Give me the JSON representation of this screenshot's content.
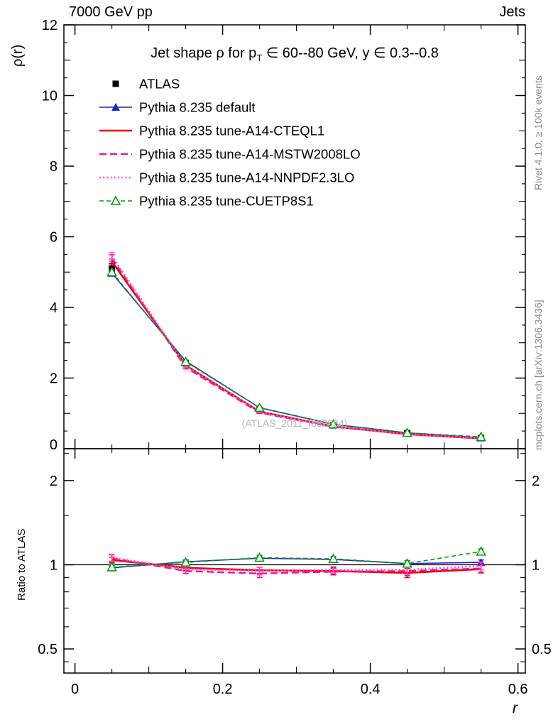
{
  "header": {
    "left": "7000 GeV pp",
    "right": "Jets"
  },
  "title": {
    "pre": "Jet shape ρ for p",
    "sub": "T",
    "post": " ∈ 60--80 GeV, y ∈ 0.3--0.8"
  },
  "watermark": "(ATLAS_2011_I882984)",
  "side": {
    "rivet": "Rivet 4.1.0, ≥ 100k events",
    "mcplots": "mcplots.cern.ch [arXiv:1306.3436]"
  },
  "chart_data": {
    "type": "line",
    "title": "Jet shape ρ for p_T ∈ 60--80 GeV, y ∈ 0.3--0.8",
    "xlabel": "r",
    "x": [
      0.05,
      0.15,
      0.25,
      0.35,
      0.45,
      0.55
    ],
    "xlim": [
      -0.015,
      0.61
    ],
    "xticks": [
      0,
      0.2,
      0.4,
      0.6
    ],
    "main_panel": {
      "ylabel": "ρ(r)",
      "ylim": [
        0,
        12
      ],
      "yticks": [
        0,
        2,
        4,
        6,
        8,
        10,
        12
      ]
    },
    "ratio_panel": {
      "ylabel": "Ratio to ATLAS",
      "yscale": "log",
      "ylim": [
        0.41,
        2.6
      ],
      "yticks": [
        0.5,
        1,
        2
      ],
      "reference": 1
    },
    "series": [
      {
        "name": "ATLAS",
        "color": "#000000",
        "marker": "square",
        "line": "none",
        "width": 1.5,
        "main": [
          5.1,
          2.42,
          1.1,
          0.66,
          0.44,
          0.3
        ],
        "main_err": [
          0.15,
          0.08,
          0.05,
          0.03,
          0.02,
          0.02
        ],
        "ratio": null,
        "ratio_err": null
      },
      {
        "name": "Pythia 8.235 default",
        "color": "#2222cc",
        "marker": "triangle",
        "line": "solid",
        "width": 1.6,
        "main": [
          4.97,
          2.48,
          1.16,
          0.69,
          0.45,
          0.31
        ],
        "main_err": [
          0.06,
          0.03,
          0.02,
          0.015,
          0.01,
          0.01
        ],
        "ratio": [
          0.975,
          1.025,
          1.055,
          1.045,
          1.01,
          1.02
        ],
        "ratio_err": [
          0.02,
          0.015,
          0.02,
          0.02,
          0.025,
          0.02
        ]
      },
      {
        "name": "Pythia 8.235 tune-A14-CTEQL1",
        "color": "#ee0000",
        "marker": "none",
        "line": "solid",
        "width": 2.6,
        "main": [
          5.3,
          2.36,
          1.05,
          0.63,
          0.41,
          0.29
        ],
        "main_err": [
          0.07,
          0.035,
          0.02,
          0.015,
          0.012,
          0.01
        ],
        "ratio": [
          1.04,
          0.975,
          0.955,
          0.95,
          0.935,
          0.965
        ],
        "ratio_err": [
          0.025,
          0.02,
          0.025,
          0.025,
          0.035,
          0.03
        ]
      },
      {
        "name": "Pythia 8.235 tune-A14-MSTW2008LO",
        "color": "#ee1199",
        "marker": "none",
        "line": "dashed",
        "width": 2.4,
        "main": [
          5.4,
          2.3,
          1.02,
          0.62,
          0.42,
          0.29
        ],
        "main_err": [
          0.09,
          0.04,
          0.025,
          0.02,
          0.015,
          0.012
        ],
        "ratio": [
          1.055,
          0.95,
          0.93,
          0.945,
          0.95,
          0.97
        ],
        "ratio_err": [
          0.03,
          0.02,
          0.03,
          0.025,
          0.035,
          0.03
        ]
      },
      {
        "name": "Pythia 8.235 tune-A14-NNPDF2.3LO",
        "color": "#ff4fcc",
        "marker": "none",
        "line": "dotted",
        "width": 2.6,
        "main": [
          5.46,
          2.35,
          1.05,
          0.63,
          0.42,
          0.3
        ],
        "main_err": [
          0.09,
          0.04,
          0.025,
          0.02,
          0.015,
          0.012
        ],
        "ratio": [
          1.06,
          0.965,
          0.95,
          0.96,
          0.96,
          0.99
        ],
        "ratio_err": [
          0.03,
          0.02,
          0.03,
          0.025,
          0.035,
          0.03
        ]
      },
      {
        "name": "Pythia 8.235 tune-CUETP8S1",
        "color": "#00a000",
        "marker": "triangle-open",
        "line": "dashed-fine",
        "width": 1.6,
        "main": [
          5.0,
          2.46,
          1.16,
          0.69,
          0.45,
          0.335
        ],
        "main_err": [
          0.06,
          0.03,
          0.02,
          0.015,
          0.01,
          0.01
        ],
        "ratio": [
          0.98,
          1.02,
          1.06,
          1.05,
          1.01,
          1.115
        ],
        "ratio_err": [
          0.02,
          0.015,
          0.02,
          0.02,
          0.025,
          0.025
        ]
      }
    ]
  }
}
